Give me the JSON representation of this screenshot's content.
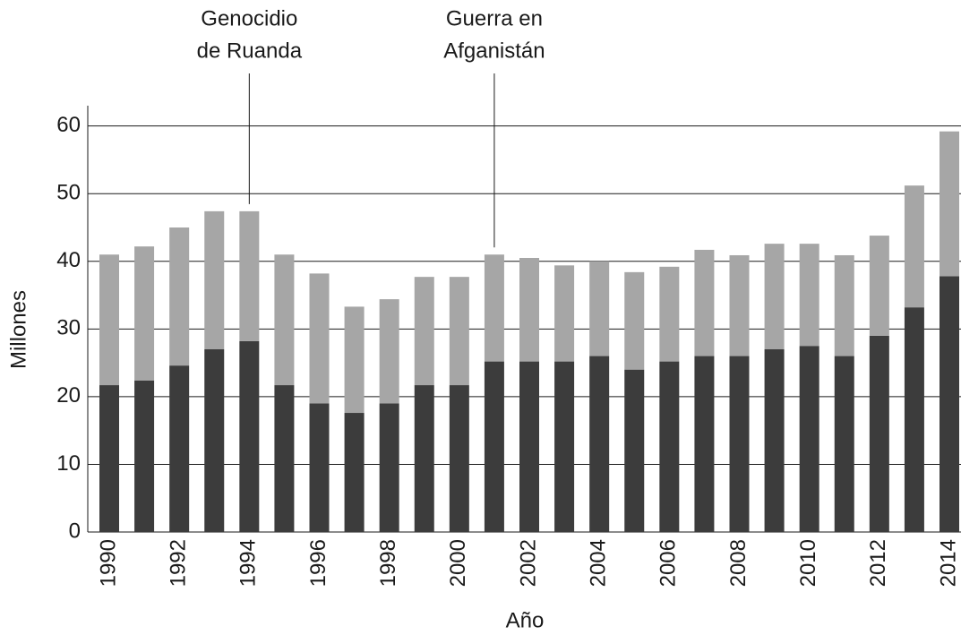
{
  "chart_data": {
    "type": "stacked-bar",
    "x_label": "Año",
    "y_label": "Millones",
    "categories": [
      "1990",
      null,
      "1992",
      null,
      "1994",
      null,
      "1996",
      null,
      "1998",
      null,
      "2000",
      null,
      "2002",
      null,
      "2004",
      null,
      "2006",
      null,
      "2008",
      null,
      "2010",
      null,
      "2012",
      null,
      "2014"
    ],
    "series": [
      {
        "color": "#3c3c3c",
        "values": [
          21.7,
          22.4,
          24.6,
          27,
          28.2,
          21.7,
          19,
          17.6,
          19,
          21.7,
          21.7,
          25.2,
          25.2,
          25.2,
          26,
          24,
          25.2,
          26,
          26,
          27,
          27.5,
          26,
          29,
          33.2,
          37.8
        ]
      },
      {
        "color": "#a6a6a6",
        "values": [
          19.3,
          19.8,
          20.4,
          20.4,
          19.2,
          19.3,
          19.2,
          15.7,
          15.4,
          16,
          16,
          15.8,
          15.3,
          14.2,
          14,
          14.4,
          14,
          15.7,
          14.9,
          15.6,
          15.1,
          14.9,
          14.8,
          18,
          21.4
        ]
      }
    ],
    "ylim": [
      0,
      63
    ],
    "yticks": [
      0,
      10,
      20,
      30,
      40,
      50,
      60
    ],
    "grid": true,
    "annotations": [
      {
        "index": 4,
        "lines": [
          "Genocidio",
          "de Ruanda"
        ]
      },
      {
        "index": 11,
        "lines": [
          "Guerra en",
          "Afganistán"
        ]
      }
    ]
  }
}
